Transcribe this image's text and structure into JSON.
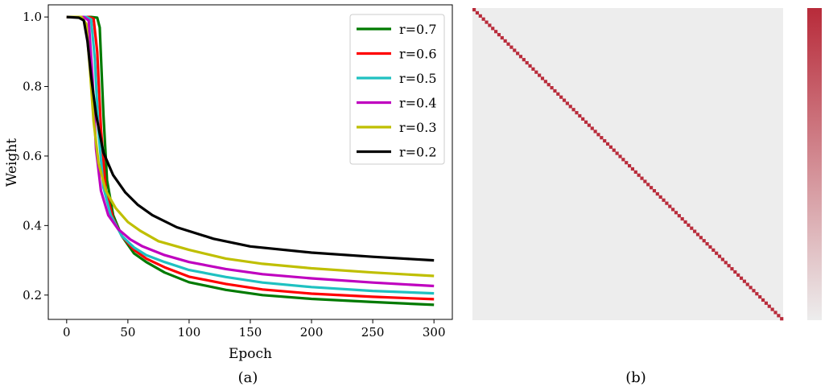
{
  "chart_data": [
    {
      "type": "line",
      "caption": "(a)",
      "title": "",
      "xlabel": "Epoch",
      "ylabel": "Weight",
      "xlim": [
        -15,
        315
      ],
      "ylim": [
        0.13,
        1.035
      ],
      "xticks": [
        0,
        50,
        100,
        150,
        200,
        250,
        300
      ],
      "yticks": [
        0.2,
        0.4,
        0.6,
        0.8,
        1.0
      ],
      "ytick_labels": [
        "0.2",
        "0.4",
        "0.6",
        "0.8",
        "1.0"
      ],
      "grid": false,
      "legend_position": "top-right",
      "series": [
        {
          "name": "r=0.7",
          "color": "#007a00",
          "x": [
            0,
            20,
            25,
            27,
            30,
            33,
            38,
            45,
            55,
            65,
            80,
            100,
            130,
            160,
            200,
            250,
            300
          ],
          "y": [
            1.0,
            1.0,
            0.998,
            0.97,
            0.72,
            0.53,
            0.43,
            0.37,
            0.32,
            0.295,
            0.265,
            0.237,
            0.215,
            0.2,
            0.189,
            0.18,
            0.172
          ]
        },
        {
          "name": "r=0.6",
          "color": "#ff0000",
          "x": [
            0,
            18,
            22,
            25,
            28,
            32,
            38,
            45,
            55,
            65,
            80,
            100,
            130,
            160,
            200,
            250,
            300
          ],
          "y": [
            1.0,
            1.0,
            0.995,
            0.9,
            0.68,
            0.5,
            0.42,
            0.37,
            0.33,
            0.305,
            0.28,
            0.253,
            0.232,
            0.216,
            0.204,
            0.195,
            0.188
          ]
        },
        {
          "name": "r=0.5",
          "color": "#1fc1c1",
          "x": [
            0,
            16,
            20,
            23,
            26,
            30,
            36,
            45,
            55,
            65,
            80,
            100,
            130,
            160,
            200,
            250,
            300
          ],
          "y": [
            1.0,
            1.0,
            0.993,
            0.88,
            0.67,
            0.51,
            0.43,
            0.37,
            0.337,
            0.315,
            0.295,
            0.272,
            0.252,
            0.236,
            0.223,
            0.212,
            0.205
          ]
        },
        {
          "name": "r=0.4",
          "color": "#bf00bf",
          "x": [
            0,
            14,
            18,
            21,
            24,
            28,
            34,
            42,
            52,
            62,
            80,
            100,
            130,
            160,
            200,
            250,
            300
          ],
          "y": [
            1.0,
            1.0,
            0.99,
            0.83,
            0.62,
            0.5,
            0.43,
            0.39,
            0.36,
            0.34,
            0.315,
            0.295,
            0.275,
            0.26,
            0.248,
            0.236,
            0.226
          ]
        },
        {
          "name": "r=0.3",
          "color": "#bfbf00",
          "x": [
            0,
            12,
            16,
            19,
            22,
            26,
            32,
            40,
            50,
            60,
            75,
            100,
            130,
            160,
            200,
            250,
            300
          ],
          "y": [
            1.0,
            1.0,
            0.98,
            0.85,
            0.7,
            0.58,
            0.5,
            0.45,
            0.41,
            0.385,
            0.355,
            0.33,
            0.305,
            0.29,
            0.277,
            0.265,
            0.255
          ]
        },
        {
          "name": "r=0.2",
          "color": "#000000",
          "x": [
            0,
            10,
            14,
            17,
            20,
            24,
            30,
            38,
            48,
            58,
            70,
            90,
            120,
            150,
            200,
            250,
            300
          ],
          "y": [
            1.0,
            0.998,
            0.99,
            0.93,
            0.83,
            0.72,
            0.61,
            0.545,
            0.495,
            0.46,
            0.43,
            0.395,
            0.362,
            0.34,
            0.322,
            0.31,
            0.3
          ]
        }
      ]
    },
    {
      "type": "heatmap",
      "caption": "(b)",
      "title": "",
      "size": 100,
      "pattern": "identity",
      "diagonal_value": 1.0,
      "offdiagonal_value": 0.0,
      "colormap": {
        "low": "#ededed",
        "high": "#b82b3a"
      },
      "colorbar": true,
      "colorbar_ticks": false
    }
  ]
}
